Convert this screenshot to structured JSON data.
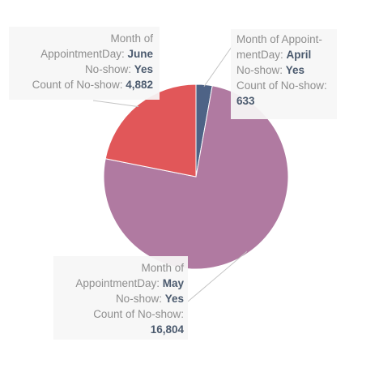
{
  "chart_data": {
    "type": "pie",
    "field_label": "Month of AppointmentDay",
    "filter_label": "No-show",
    "filter_value": "Yes",
    "measure_label": "Count of No-show",
    "slices": [
      {
        "category": "April",
        "value": 633,
        "value_label": "633",
        "color": "#4e6386"
      },
      {
        "category": "May",
        "value": 16804,
        "value_label": "16,804",
        "color": "#b07aa1"
      },
      {
        "category": "June",
        "value": 4882,
        "value_label": "4,882",
        "color": "#e15759"
      }
    ],
    "legend": "none"
  },
  "callouts": {
    "june": {
      "line1": "Month of",
      "line2_prefix": "AppointmentDay: ",
      "month": "June",
      "line3_prefix": "No-show: ",
      "noshow": "Yes",
      "line4_prefix": "Count of No-show: ",
      "count": "4,882"
    },
    "april": {
      "line1": "Month of Appoint-",
      "line2_prefix": "mentDay: ",
      "month": "April",
      "line3_prefix": "No-show: ",
      "noshow": "Yes",
      "line4": "Count of No-show:",
      "count": "633"
    },
    "may": {
      "line1": "Month of",
      "line2_prefix": "AppointmentDay: ",
      "month": "May",
      "line3_prefix": "No-show: ",
      "noshow": "Yes",
      "line4": "Count of No-show:",
      "count": "16,804"
    }
  }
}
